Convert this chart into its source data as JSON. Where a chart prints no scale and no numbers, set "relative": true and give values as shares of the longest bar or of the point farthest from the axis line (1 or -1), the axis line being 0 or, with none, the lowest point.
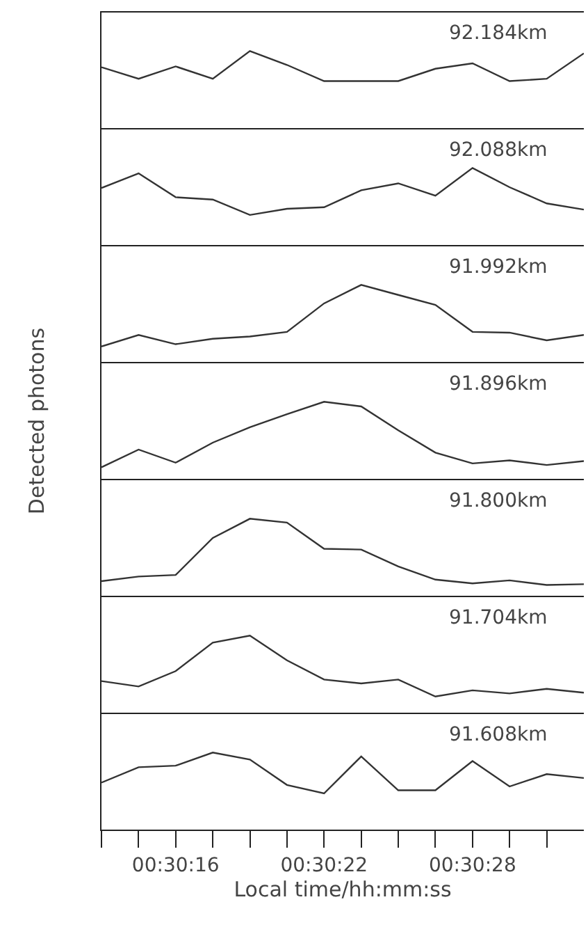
{
  "chart_data": [
    {
      "type": "line",
      "relative": true,
      "annotations": [
        "92.184km"
      ],
      "color": "#333333",
      "tick_labels": false,
      "xlim": [
        0.503611,
        0.509028
      ],
      "x": [
        0.503611,
        0.504028,
        0.504444,
        0.504861,
        0.505278,
        0.505694,
        0.506111,
        0.506528,
        0.506944,
        0.507361,
        0.507778,
        0.508194,
        0.508611,
        0.509028
      ],
      "values": [
        0.79,
        0.64,
        0.8,
        0.64,
        1,
        0.82,
        0.61,
        0.61,
        0.61,
        0.77,
        0.84,
        0.61,
        0.64,
        0.97
      ]
    },
    {
      "type": "line",
      "relative": true,
      "annotations": [
        "92.088km"
      ],
      "color": "#333333",
      "tick_labels": false,
      "xlim": [
        0.503611,
        0.509028
      ],
      "x": [
        0.503611,
        0.504028,
        0.504444,
        0.504861,
        0.505278,
        0.505694,
        0.506111,
        0.506528,
        0.506944,
        0.507361,
        0.507778,
        0.508194,
        0.508611,
        0.509028
      ],
      "values": [
        0.74,
        0.93,
        0.62,
        0.59,
        0.39,
        0.47,
        0.49,
        0.71,
        0.8,
        0.64,
        1,
        0.75,
        0.54,
        0.46
      ]
    },
    {
      "type": "line",
      "relative": true,
      "annotations": [
        "91.992km"
      ],
      "color": "#333333",
      "tick_labels": false,
      "xlim": [
        0.503611,
        0.509028
      ],
      "x": [
        0.503611,
        0.504028,
        0.504444,
        0.504861,
        0.505278,
        0.505694,
        0.506111,
        0.506528,
        0.506944,
        0.507361,
        0.507778,
        0.508194,
        0.508611,
        0.509028
      ],
      "values": [
        0.2,
        0.35,
        0.23,
        0.3,
        0.33,
        0.39,
        0.76,
        1,
        0.87,
        0.74,
        0.39,
        0.38,
        0.28,
        0.35
      ]
    },
    {
      "type": "line",
      "relative": true,
      "ylabel": "Detected photons",
      "annotations": [
        "91.896km"
      ],
      "color": "#333333",
      "tick_labels": false,
      "xlim": [
        0.503611,
        0.509028
      ],
      "x": [
        0.503611,
        0.504028,
        0.504444,
        0.504861,
        0.505278,
        0.505694,
        0.506111,
        0.506528,
        0.506944,
        0.507361,
        0.507778,
        0.508194,
        0.508611,
        0.509028
      ],
      "values": [
        0.15,
        0.38,
        0.21,
        0.47,
        0.67,
        0.84,
        1,
        0.94,
        0.63,
        0.34,
        0.2,
        0.24,
        0.18,
        0.23
      ]
    },
    {
      "type": "line",
      "relative": true,
      "annotations": [
        "91.800km"
      ],
      "color": "#333333",
      "tick_labels": false,
      "xlim": [
        0.503611,
        0.509028
      ],
      "x": [
        0.503611,
        0.504028,
        0.504444,
        0.504861,
        0.505278,
        0.505694,
        0.506111,
        0.506528,
        0.506944,
        0.507361,
        0.507778,
        0.508194,
        0.508611,
        0.509028
      ],
      "values": [
        0.19,
        0.25,
        0.27,
        0.75,
        1,
        0.95,
        0.61,
        0.6,
        0.38,
        0.21,
        0.16,
        0.2,
        0.14,
        0.15
      ]
    },
    {
      "type": "line",
      "relative": true,
      "annotations": [
        "91.704km"
      ],
      "color": "#333333",
      "tick_labels": false,
      "xlim": [
        0.503611,
        0.509028
      ],
      "x": [
        0.503611,
        0.504028,
        0.504444,
        0.504861,
        0.505278,
        0.505694,
        0.506111,
        0.506528,
        0.506944,
        0.507361,
        0.507778,
        0.508194,
        0.508611,
        0.509028
      ],
      "values": [
        0.41,
        0.34,
        0.54,
        0.91,
        1,
        0.68,
        0.43,
        0.38,
        0.43,
        0.21,
        0.29,
        0.25,
        0.31,
        0.26
      ]
    },
    {
      "type": "line",
      "relative": true,
      "xlabel": "Local time/hh:mm:ss",
      "annotations": [
        "91.608km"
      ],
      "color": "#333333",
      "tick_labels": "x",
      "xlim": [
        0.503611,
        0.509028
      ],
      "xticks": [
        {
          "value": 0.503611,
          "label": null
        },
        {
          "value": 0.504028,
          "label": null
        },
        {
          "value": 0.504444,
          "label": "00:30:16"
        },
        {
          "value": 0.504861,
          "label": null
        },
        {
          "value": 0.505278,
          "label": null
        },
        {
          "value": 0.505694,
          "label": null
        },
        {
          "value": 0.506111,
          "label": "00:30:22"
        },
        {
          "value": 0.506528,
          "label": null
        },
        {
          "value": 0.506944,
          "label": null
        },
        {
          "value": 0.507361,
          "label": null
        },
        {
          "value": 0.507778,
          "label": "00:30:28"
        },
        {
          "value": 0.508194,
          "label": null
        },
        {
          "value": 0.508611,
          "label": null
        }
      ],
      "x": [
        0.503611,
        0.504028,
        0.504444,
        0.504861,
        0.505278,
        0.505694,
        0.506111,
        0.506528,
        0.506944,
        0.507361,
        0.507778,
        0.508194,
        0.508611,
        0.509028
      ],
      "values": [
        0.61,
        0.81,
        0.83,
        1,
        0.91,
        0.58,
        0.47,
        0.95,
        0.51,
        0.51,
        0.89,
        0.56,
        0.72,
        0.67
      ]
    }
  ]
}
